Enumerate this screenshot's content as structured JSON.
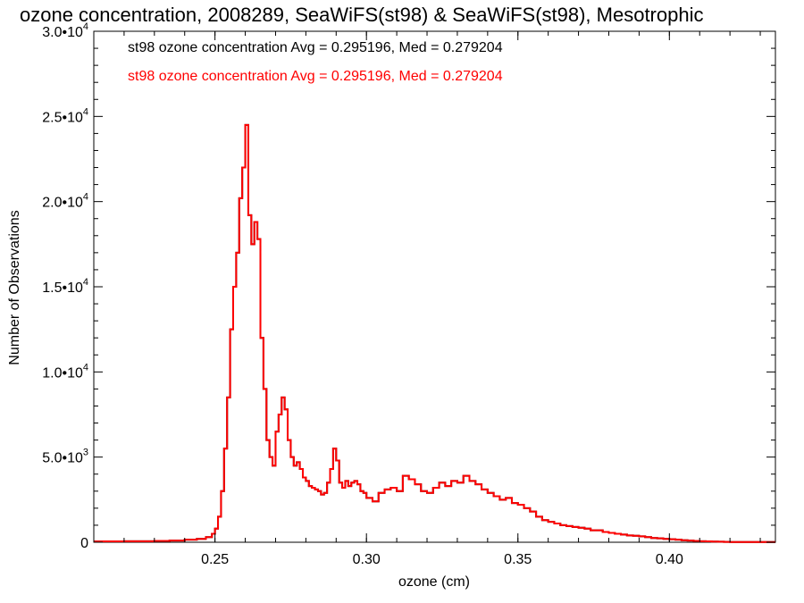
{
  "chart_data": {
    "type": "line",
    "title": "ozone concentration, 2008289, SeaWiFS(st98) & SeaWiFS(st98), Mesotrophic",
    "xlabel": "ozone (cm)",
    "ylabel": "Number of Observations",
    "xlim": [
      0.21,
      0.435
    ],
    "ylim": [
      0,
      30000
    ],
    "x_ticks": [
      0.25,
      0.3,
      0.35,
      0.4
    ],
    "x_tick_labels": [
      "0.25",
      "0.30",
      "0.35",
      "0.40"
    ],
    "y_ticks": [
      0,
      5000,
      10000,
      15000,
      20000,
      25000,
      30000
    ],
    "y_tick_labels": [
      {
        "mant": "0",
        "exp": ""
      },
      {
        "mant": "5.0•10",
        "exp": "3"
      },
      {
        "mant": "1.0•10",
        "exp": "4"
      },
      {
        "mant": "1.5•10",
        "exp": "4"
      },
      {
        "mant": "2.0•10",
        "exp": "4"
      },
      {
        "mant": "2.5•10",
        "exp": "4"
      },
      {
        "mant": "3.0•10",
        "exp": "4"
      }
    ],
    "legend_placement": "top-left",
    "series": [
      {
        "name": "st98 ozone concentration Avg = 0.295196, Med = 0.279204",
        "color": "#000000",
        "x": [
          0.21,
          0.22,
          0.23,
          0.235,
          0.24,
          0.244,
          0.247,
          0.249,
          0.25,
          0.251,
          0.252,
          0.253,
          0.254,
          0.255,
          0.256,
          0.257,
          0.258,
          0.259,
          0.26,
          0.261,
          0.262,
          0.263,
          0.264,
          0.265,
          0.266,
          0.267,
          0.268,
          0.269,
          0.27,
          0.271,
          0.272,
          0.273,
          0.274,
          0.275,
          0.276,
          0.277,
          0.278,
          0.279,
          0.28,
          0.281,
          0.282,
          0.283,
          0.284,
          0.285,
          0.286,
          0.287,
          0.288,
          0.289,
          0.29,
          0.291,
          0.292,
          0.293,
          0.294,
          0.295,
          0.296,
          0.297,
          0.298,
          0.299,
          0.3,
          0.302,
          0.304,
          0.306,
          0.308,
          0.31,
          0.312,
          0.314,
          0.316,
          0.318,
          0.32,
          0.322,
          0.324,
          0.326,
          0.328,
          0.33,
          0.332,
          0.334,
          0.336,
          0.338,
          0.34,
          0.342,
          0.344,
          0.346,
          0.348,
          0.35,
          0.352,
          0.354,
          0.356,
          0.358,
          0.36,
          0.362,
          0.364,
          0.366,
          0.368,
          0.37,
          0.372,
          0.374,
          0.376,
          0.378,
          0.38,
          0.382,
          0.384,
          0.386,
          0.388,
          0.39,
          0.392,
          0.394,
          0.396,
          0.398,
          0.4,
          0.402,
          0.404,
          0.406,
          0.408,
          0.41,
          0.412,
          0.414,
          0.416,
          0.418,
          0.42,
          0.425,
          0.43
        ],
        "y": [
          50,
          60,
          80,
          100,
          150,
          200,
          300,
          500,
          800,
          1500,
          3000,
          5500,
          8500,
          12500,
          15000,
          17000,
          20200,
          22000,
          24500,
          19200,
          17500,
          18800,
          17800,
          12000,
          9000,
          6000,
          5000,
          4500,
          6500,
          7500,
          8500,
          7800,
          6000,
          5000,
          4500,
          4700,
          4300,
          3800,
          3600,
          3300,
          3200,
          3100,
          3000,
          2800,
          2900,
          3500,
          4300,
          5500,
          4800,
          3500,
          3200,
          3600,
          3300,
          3500,
          3600,
          3400,
          3000,
          2900,
          2600,
          2400,
          2900,
          3100,
          3200,
          3000,
          3900,
          3700,
          3400,
          3000,
          2900,
          3200,
          3500,
          3300,
          3600,
          3500,
          3900,
          3600,
          3400,
          3100,
          2900,
          2700,
          2500,
          2600,
          2300,
          2200,
          2000,
          1800,
          1500,
          1300,
          1200,
          1100,
          1000,
          950,
          900,
          850,
          800,
          700,
          700,
          600,
          550,
          500,
          450,
          400,
          380,
          350,
          300,
          250,
          230,
          200,
          180,
          150,
          120,
          100,
          80,
          60,
          50,
          40,
          30,
          20,
          15,
          10,
          10
        ]
      },
      {
        "name": "st98 ozone concentration Avg = 0.295196, Med = 0.279204",
        "color": "#ff0000",
        "x": [
          0.21,
          0.22,
          0.23,
          0.235,
          0.24,
          0.244,
          0.247,
          0.249,
          0.25,
          0.251,
          0.252,
          0.253,
          0.254,
          0.255,
          0.256,
          0.257,
          0.258,
          0.259,
          0.26,
          0.261,
          0.262,
          0.263,
          0.264,
          0.265,
          0.266,
          0.267,
          0.268,
          0.269,
          0.27,
          0.271,
          0.272,
          0.273,
          0.274,
          0.275,
          0.276,
          0.277,
          0.278,
          0.279,
          0.28,
          0.281,
          0.282,
          0.283,
          0.284,
          0.285,
          0.286,
          0.287,
          0.288,
          0.289,
          0.29,
          0.291,
          0.292,
          0.293,
          0.294,
          0.295,
          0.296,
          0.297,
          0.298,
          0.299,
          0.3,
          0.302,
          0.304,
          0.306,
          0.308,
          0.31,
          0.312,
          0.314,
          0.316,
          0.318,
          0.32,
          0.322,
          0.324,
          0.326,
          0.328,
          0.33,
          0.332,
          0.334,
          0.336,
          0.338,
          0.34,
          0.342,
          0.344,
          0.346,
          0.348,
          0.35,
          0.352,
          0.354,
          0.356,
          0.358,
          0.36,
          0.362,
          0.364,
          0.366,
          0.368,
          0.37,
          0.372,
          0.374,
          0.376,
          0.378,
          0.38,
          0.382,
          0.384,
          0.386,
          0.388,
          0.39,
          0.392,
          0.394,
          0.396,
          0.398,
          0.4,
          0.402,
          0.404,
          0.406,
          0.408,
          0.41,
          0.412,
          0.414,
          0.416,
          0.418,
          0.42,
          0.425,
          0.43
        ],
        "y": [
          50,
          60,
          80,
          100,
          150,
          200,
          300,
          500,
          800,
          1500,
          3000,
          5500,
          8500,
          12500,
          15000,
          17000,
          20200,
          22000,
          24500,
          19200,
          17500,
          18800,
          17800,
          12000,
          9000,
          6000,
          5000,
          4500,
          6500,
          7500,
          8500,
          7800,
          6000,
          5000,
          4500,
          4700,
          4300,
          3800,
          3600,
          3300,
          3200,
          3100,
          3000,
          2800,
          2900,
          3500,
          4300,
          5500,
          4800,
          3500,
          3200,
          3600,
          3300,
          3500,
          3600,
          3400,
          3000,
          2900,
          2600,
          2400,
          2900,
          3100,
          3200,
          3000,
          3900,
          3700,
          3400,
          3000,
          2900,
          3200,
          3500,
          3300,
          3600,
          3500,
          3900,
          3600,
          3400,
          3100,
          2900,
          2700,
          2500,
          2600,
          2300,
          2200,
          2000,
          1800,
          1500,
          1300,
          1200,
          1100,
          1000,
          950,
          900,
          850,
          800,
          700,
          700,
          600,
          550,
          500,
          450,
          400,
          380,
          350,
          300,
          250,
          230,
          200,
          180,
          150,
          120,
          100,
          80,
          60,
          50,
          40,
          30,
          20,
          15,
          10,
          10
        ]
      }
    ]
  }
}
